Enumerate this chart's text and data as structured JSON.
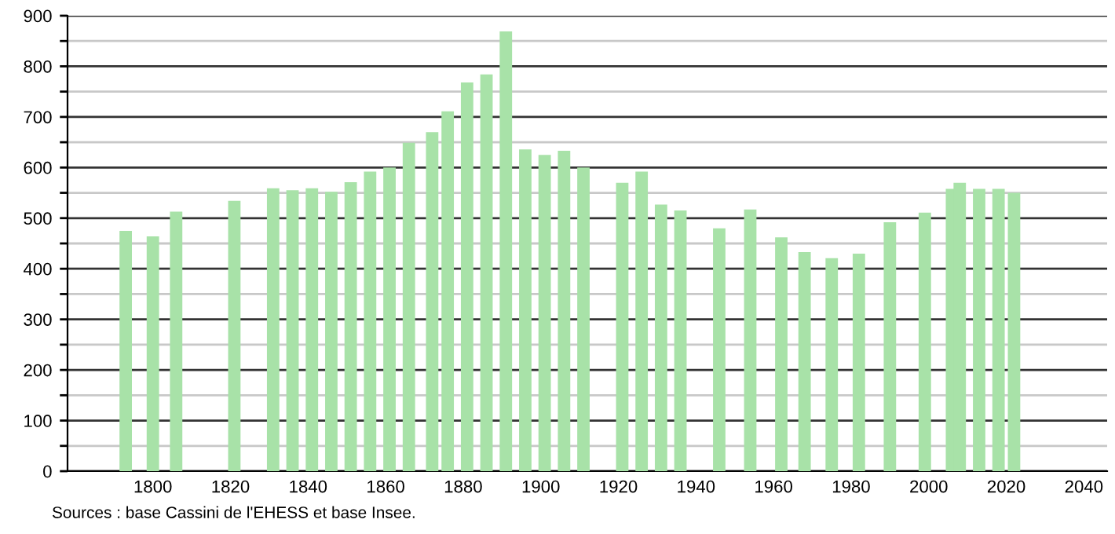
{
  "chart_data": {
    "type": "bar",
    "color": "#a8e2a8",
    "x": [
      1793,
      1800,
      1806,
      1821,
      1831,
      1836,
      1841,
      1846,
      1851,
      1856,
      1861,
      1866,
      1872,
      1876,
      1881,
      1886,
      1891,
      1896,
      1901,
      1906,
      1911,
      1921,
      1926,
      1931,
      1936,
      1946,
      1954,
      1962,
      1968,
      1975,
      1982,
      1990,
      1999,
      2006,
      2008,
      2013,
      2018,
      2022
    ],
    "values": [
      475,
      464,
      513,
      534,
      559,
      555,
      559,
      552,
      571,
      592,
      600,
      649,
      670,
      711,
      768,
      784,
      869,
      636,
      625,
      633,
      600,
      570,
      592,
      527,
      515,
      480,
      517,
      462,
      433,
      421,
      430,
      492,
      511,
      558,
      570,
      558,
      558,
      550
    ],
    "xlim": [
      1778,
      2046
    ],
    "xticks": [
      1800,
      1820,
      1840,
      1860,
      1880,
      1900,
      1920,
      1940,
      1960,
      1980,
      2000,
      2020,
      2040
    ],
    "ylim": [
      0,
      900
    ],
    "yticks": [
      0,
      {
        "value": 50,
        "label": null
      },
      100,
      {
        "value": 150,
        "label": null
      },
      200,
      {
        "value": 250,
        "label": null
      },
      300,
      {
        "value": 350,
        "label": null
      },
      400,
      {
        "value": 450,
        "label": null
      },
      500,
      {
        "value": 550,
        "label": null
      },
      600,
      {
        "value": 650,
        "label": null
      },
      700,
      {
        "value": 750,
        "label": null
      },
      800,
      {
        "value": 850,
        "label": null
      },
      900
    ],
    "grid": "y",
    "annotations": [
      "Sources : base Cassini de l'EHESS et base Insee."
    ]
  }
}
